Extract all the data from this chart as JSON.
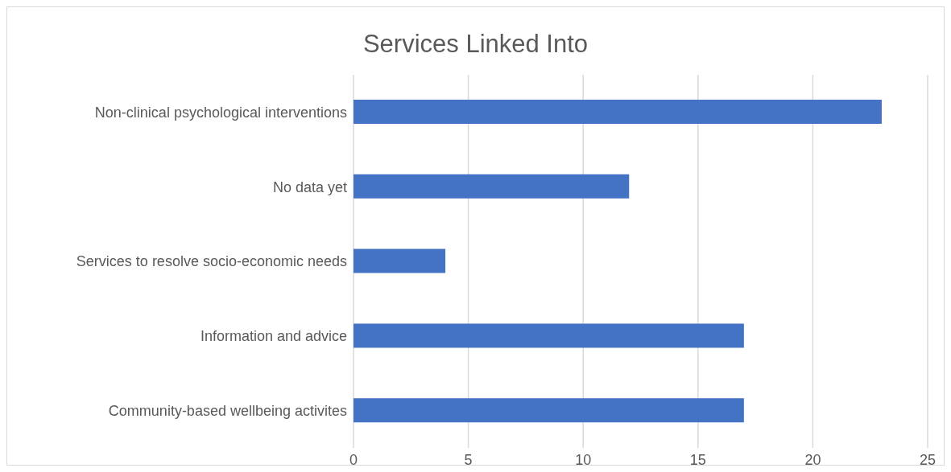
{
  "chart_data": {
    "type": "bar",
    "orientation": "horizontal",
    "title": "Services Linked Into",
    "categories": [
      "Non-clinical psychological interventions",
      "No data yet",
      "Services to resolve socio-economic needs",
      "Information and advice",
      "Community-based wellbeing activites"
    ],
    "values": [
      23,
      12,
      4,
      17,
      17
    ],
    "color": "#4472c4",
    "xlim": [
      0,
      25
    ],
    "xticks": [
      0,
      5,
      10,
      15,
      20,
      25
    ],
    "grid": "x"
  }
}
